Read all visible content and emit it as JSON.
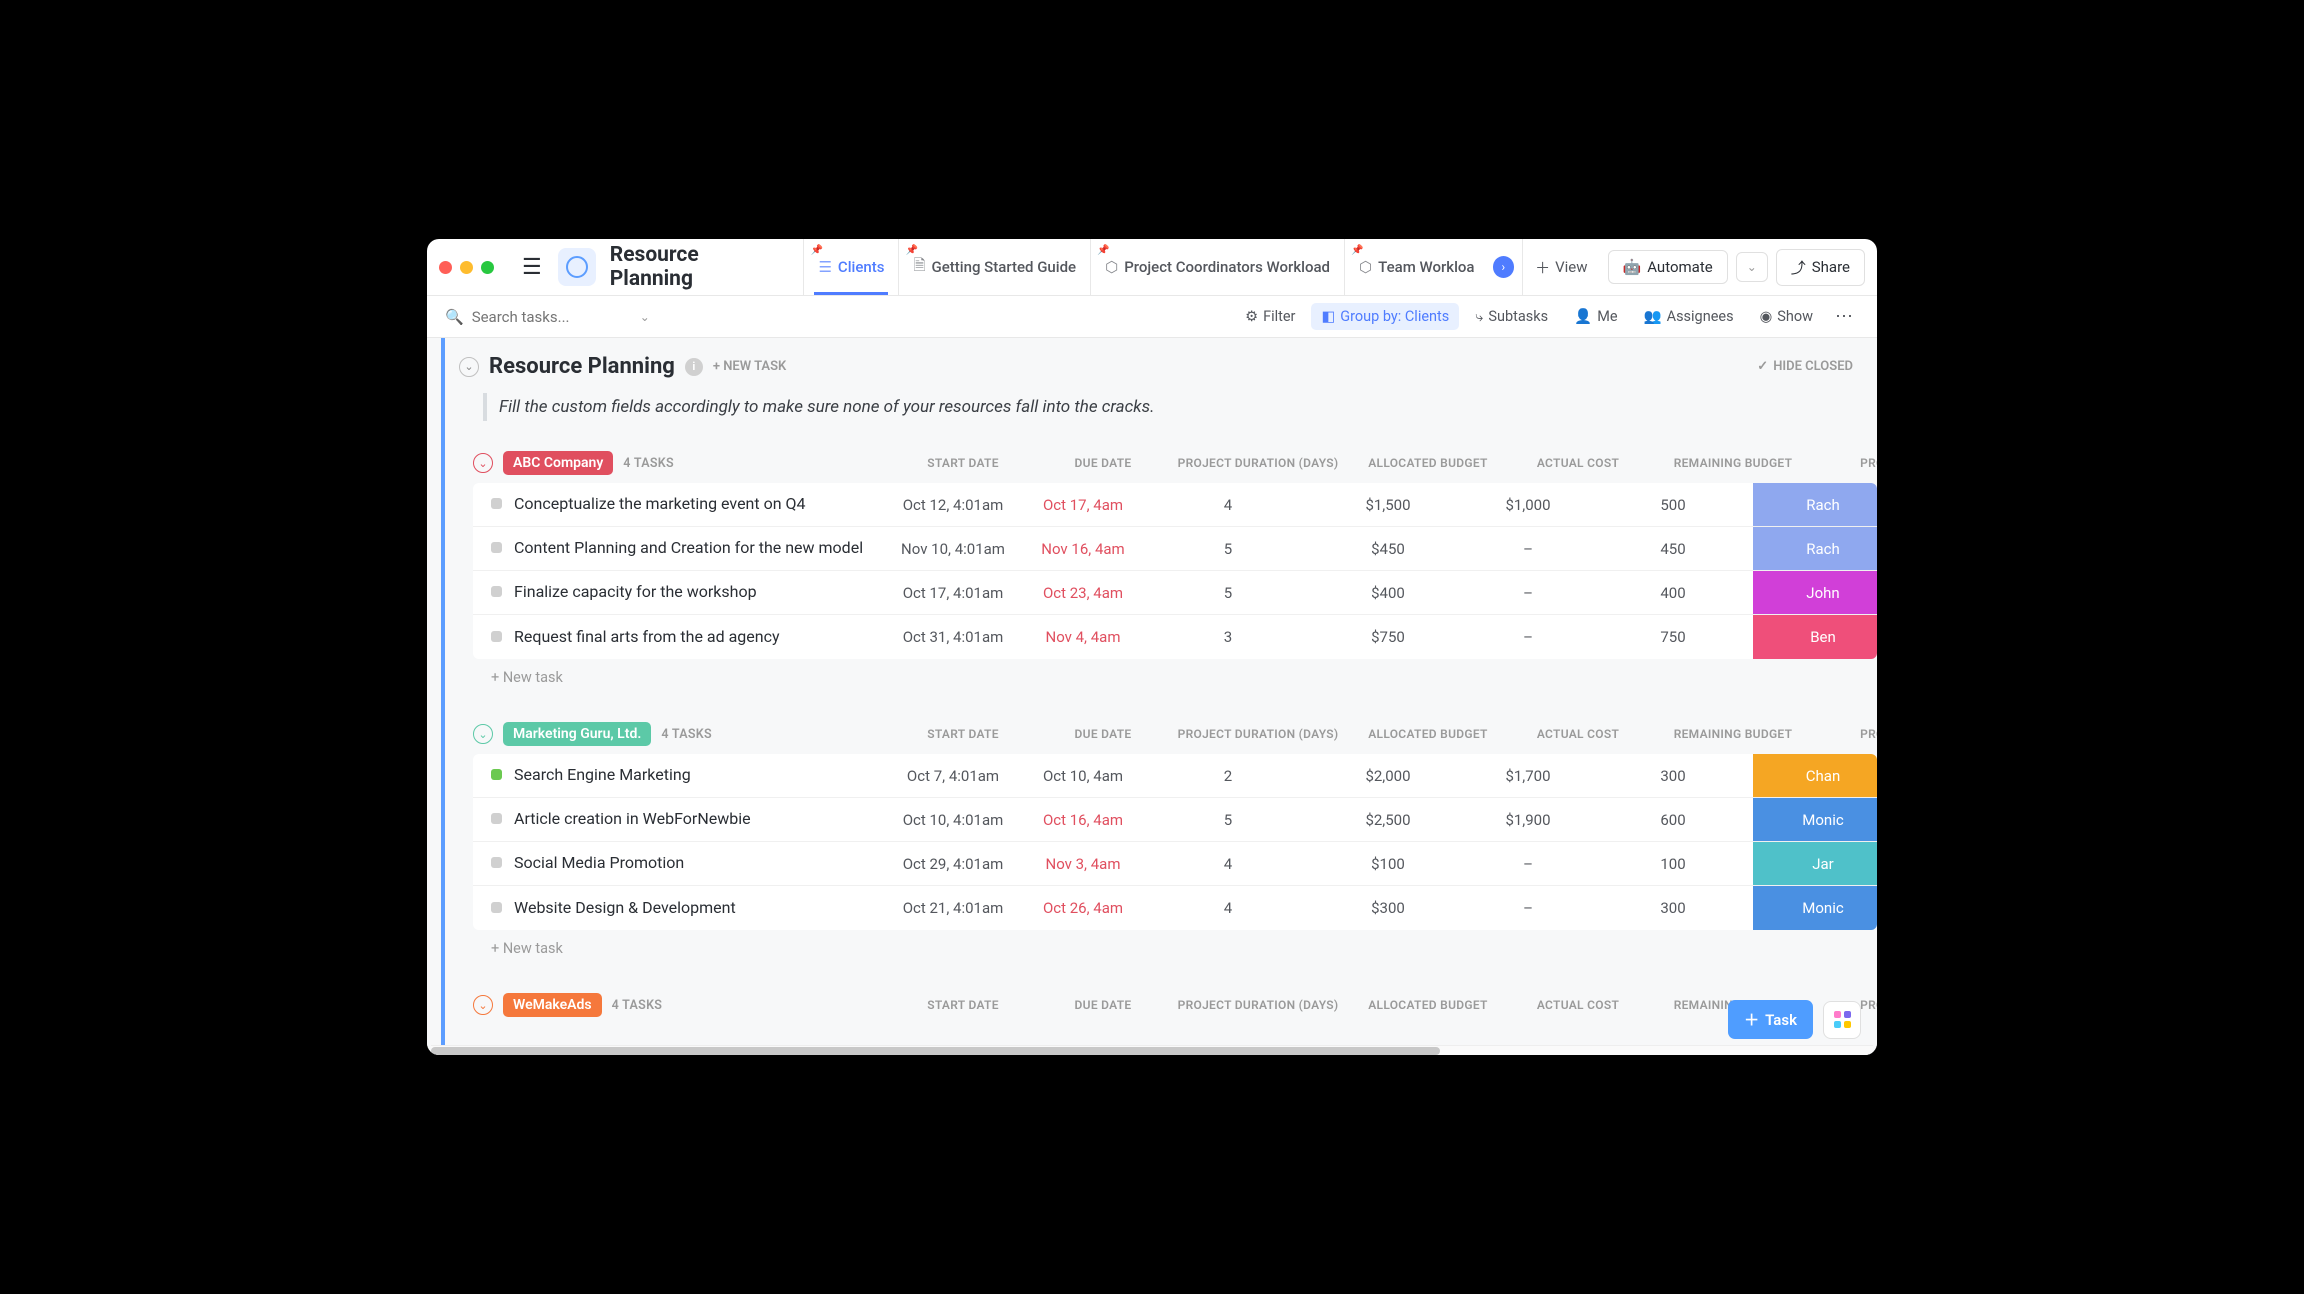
{
  "window": {
    "title": "Resource Planning"
  },
  "tabs": [
    {
      "label": "Clients",
      "icon": "☰",
      "active": true
    },
    {
      "label": "Getting Started Guide",
      "icon": "🗎"
    },
    {
      "label": "Project Coordinators Workload",
      "icon": "⬡"
    },
    {
      "label": "Team Workloa",
      "icon": "⬡"
    }
  ],
  "view_btn": "View",
  "automate_btn": "Automate",
  "share_btn": "Share",
  "search": {
    "placeholder": "Search tasks..."
  },
  "toolbar": {
    "filter": "Filter",
    "group_by": "Group by: Clients",
    "subtasks": "Subtasks",
    "me": "Me",
    "assignees": "Assignees",
    "show": "Show"
  },
  "section": {
    "title": "Resource Planning",
    "new_task": "+ NEW TASK",
    "hide_closed": "HIDE CLOSED",
    "banner": "Fill the custom fields accordingly to make sure none of your resources fall into the cracks."
  },
  "columns": [
    "START DATE",
    "DUE DATE",
    "PROJECT DURATION (DAYS)",
    "ALLOCATED BUDGET",
    "ACTUAL COST",
    "REMAINING BUDGET",
    "PROJECT O"
  ],
  "new_task_label": "+ New task",
  "fab": "Task",
  "fab_colors": [
    "#ff7bca",
    "#7b68ee",
    "#49ccf9",
    "#ffc800"
  ],
  "groups": [
    {
      "name": "ABC Company",
      "color": "#e04f5f",
      "count": "4 TASKS",
      "tasks": [
        {
          "name": "Conceptualize the marketing event on Q4",
          "start": "Oct 12, 4:01am",
          "due": "Oct 17, 4am",
          "due_overdue": true,
          "duration": "4",
          "budget": "$1,500",
          "cost": "$1,000",
          "remaining": "500",
          "owner": "Rach",
          "owner_color": "#8fa8ef"
        },
        {
          "name": "Content Planning and Creation for the new model",
          "start": "Nov 10, 4:01am",
          "due": "Nov 16, 4am",
          "due_overdue": true,
          "duration": "5",
          "budget": "$450",
          "cost": "–",
          "remaining": "450",
          "owner": "Rach",
          "owner_color": "#8fa8ef"
        },
        {
          "name": "Finalize capacity for the workshop",
          "start": "Oct 17, 4:01am",
          "due": "Oct 23, 4am",
          "due_overdue": true,
          "duration": "5",
          "budget": "$400",
          "cost": "–",
          "remaining": "400",
          "owner": "John",
          "owner_color": "#d13fd8"
        },
        {
          "name": "Request final arts from the ad agency",
          "start": "Oct 31, 4:01am",
          "due": "Nov 4, 4am",
          "due_overdue": true,
          "duration": "3",
          "budget": "$750",
          "cost": "–",
          "remaining": "750",
          "owner": "Ben",
          "owner_color": "#ef4f7a"
        }
      ]
    },
    {
      "name": "Marketing Guru, Ltd.",
      "color": "#5cc9a7",
      "count": "4 TASKS",
      "tasks": [
        {
          "name": "Search Engine Marketing",
          "status_green": true,
          "start": "Oct 7, 4:01am",
          "due": "Oct 10, 4am",
          "due_overdue": false,
          "duration": "2",
          "budget": "$2,000",
          "cost": "$1,700",
          "remaining": "300",
          "owner": "Chan",
          "owner_color": "#f5a623"
        },
        {
          "name": "Article creation in WebForNewbie",
          "start": "Oct 10, 4:01am",
          "due": "Oct 16, 4am",
          "due_overdue": true,
          "duration": "5",
          "budget": "$2,500",
          "cost": "$1,900",
          "remaining": "600",
          "owner": "Monic",
          "owner_color": "#4a90e2"
        },
        {
          "name": "Social Media Promotion",
          "start": "Oct 29, 4:01am",
          "due": "Nov 3, 4am",
          "due_overdue": true,
          "duration": "4",
          "budget": "$100",
          "cost": "–",
          "remaining": "100",
          "owner": "Jar",
          "owner_color": "#4fc1c9"
        },
        {
          "name": "Website Design & Development",
          "start": "Oct 21, 4:01am",
          "due": "Oct 26, 4am",
          "due_overdue": true,
          "duration": "4",
          "budget": "$300",
          "cost": "–",
          "remaining": "300",
          "owner": "Monic",
          "owner_color": "#4a90e2"
        }
      ]
    },
    {
      "name": "WeMakeAds",
      "color": "#f5783c",
      "count": "4 TASKS",
      "tasks": []
    }
  ]
}
